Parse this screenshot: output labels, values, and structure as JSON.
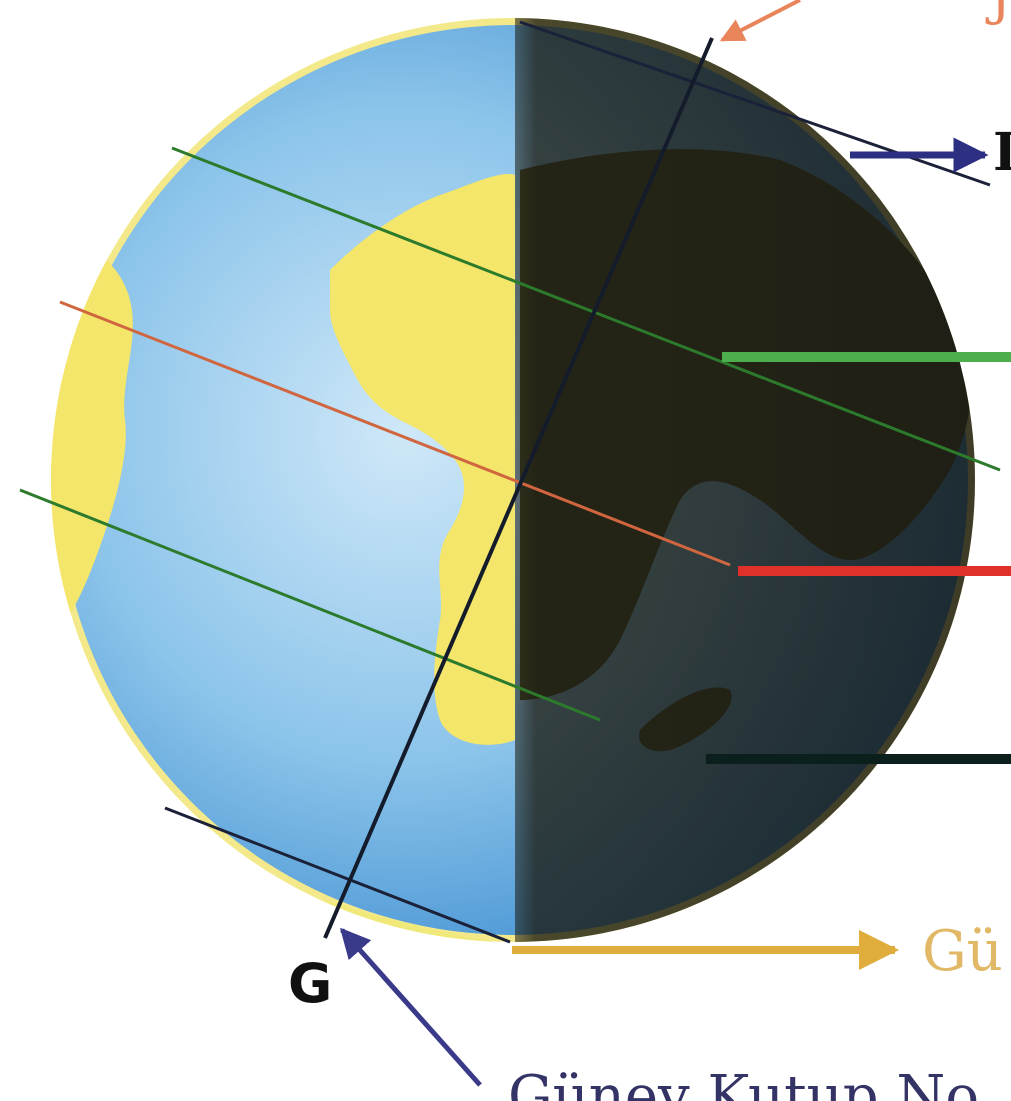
{
  "diagram": {
    "labels": {
      "south_pole_letter": "G",
      "partial_top_right": "J",
      "partial_right_upper": "I",
      "partial_bottom_right": "Gü",
      "partial_bottom": "Güney Kutup No"
    },
    "lines": [
      {
        "name": "axis-line",
        "color": "#141c2c"
      },
      {
        "name": "arctic-circle",
        "color": "#1b2138"
      },
      {
        "name": "tropic-of-cancer",
        "color": "#2c7a2c"
      },
      {
        "name": "equator",
        "color": "#d0663f"
      },
      {
        "name": "tropic-of-capricorn",
        "color": "#2c7a2c"
      },
      {
        "name": "antarctic-circle",
        "color": "#1b2138"
      }
    ],
    "pointers": [
      {
        "name": "north-pole-arrow",
        "color": "#e8855a"
      },
      {
        "name": "arctic-pointer",
        "color": "#2c2f82"
      },
      {
        "name": "tropic-cancer-pointer",
        "color": "#4cae4c"
      },
      {
        "name": "equator-pointer",
        "color": "#e0302a"
      },
      {
        "name": "tropic-capricorn-pointer",
        "color": "#0b1f1c"
      },
      {
        "name": "antarctic-pointer",
        "color": "#e0ad3c"
      },
      {
        "name": "south-pole-arrow",
        "color": "#3a3a8a"
      }
    ],
    "colors": {
      "ocean": "#8cc4ea",
      "land": "#f4e66a",
      "night_shade": "#2b2a1c"
    }
  }
}
